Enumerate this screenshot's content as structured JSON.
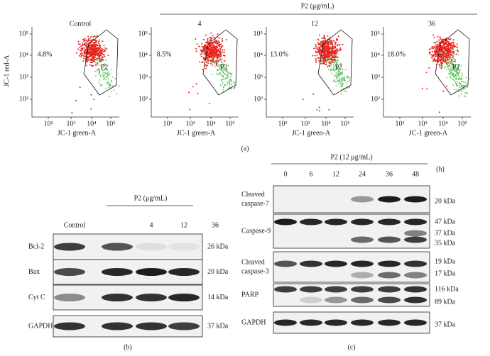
{
  "panel_a": {
    "label": "(a)",
    "treatment_label": "P2 (μg/mL)",
    "y_axis_label": "JC-1 red-A",
    "x_axis_label": "JC-1 green-A",
    "yticks": [
      "10⁵",
      "10⁴",
      "10³",
      "10²"
    ],
    "xticks": [
      "10²",
      "10³",
      "10⁴",
      "10⁵"
    ],
    "plots": [
      {
        "title": "Control",
        "percent": "4.8%",
        "gate": "P2"
      },
      {
        "title": "4",
        "percent": "8.5%",
        "gate": "P2"
      },
      {
        "title": "12",
        "percent": "13.0%",
        "gate": "P2"
      },
      {
        "title": "36",
        "percent": "18.0%",
        "gate": "P2"
      }
    ]
  },
  "panel_b": {
    "label": "(b)",
    "treatment_label": "P2 (μg/mL)",
    "lanes": [
      "Control",
      "4",
      "12",
      "36"
    ],
    "rows": [
      {
        "protein": "Bcl-2",
        "size": "26 kDa"
      },
      {
        "protein": "Bax",
        "size": "20 kDa"
      },
      {
        "protein": "Cyt C",
        "size": "14 kDa"
      },
      {
        "protein": "GAPDH",
        "size": "37 kDa"
      }
    ]
  },
  "panel_c": {
    "label": "(c)",
    "treatment_label": "P2 (12 μg/mL)",
    "unit": "(h)",
    "lanes": [
      "0",
      "6",
      "12",
      "24",
      "36",
      "48"
    ],
    "blots": [
      {
        "protein": [
          "Cleaved",
          "caspase-7"
        ],
        "sizes": [
          "20 kDa"
        ]
      },
      {
        "protein": [
          "Caspase-9"
        ],
        "sizes": [
          "47 kDa",
          "37 kDa",
          "35 kDa"
        ]
      },
      {
        "protein": [
          "Cleaved",
          "caspase-3"
        ],
        "sizes": [
          "19 kDa",
          "17 kDa"
        ]
      },
      {
        "protein": [
          "PARP"
        ],
        "sizes": [
          "116 kDa",
          "89 kDa"
        ]
      },
      {
        "protein": [
          "GAPDH"
        ],
        "sizes": [
          "37 kDa"
        ]
      }
    ]
  }
}
